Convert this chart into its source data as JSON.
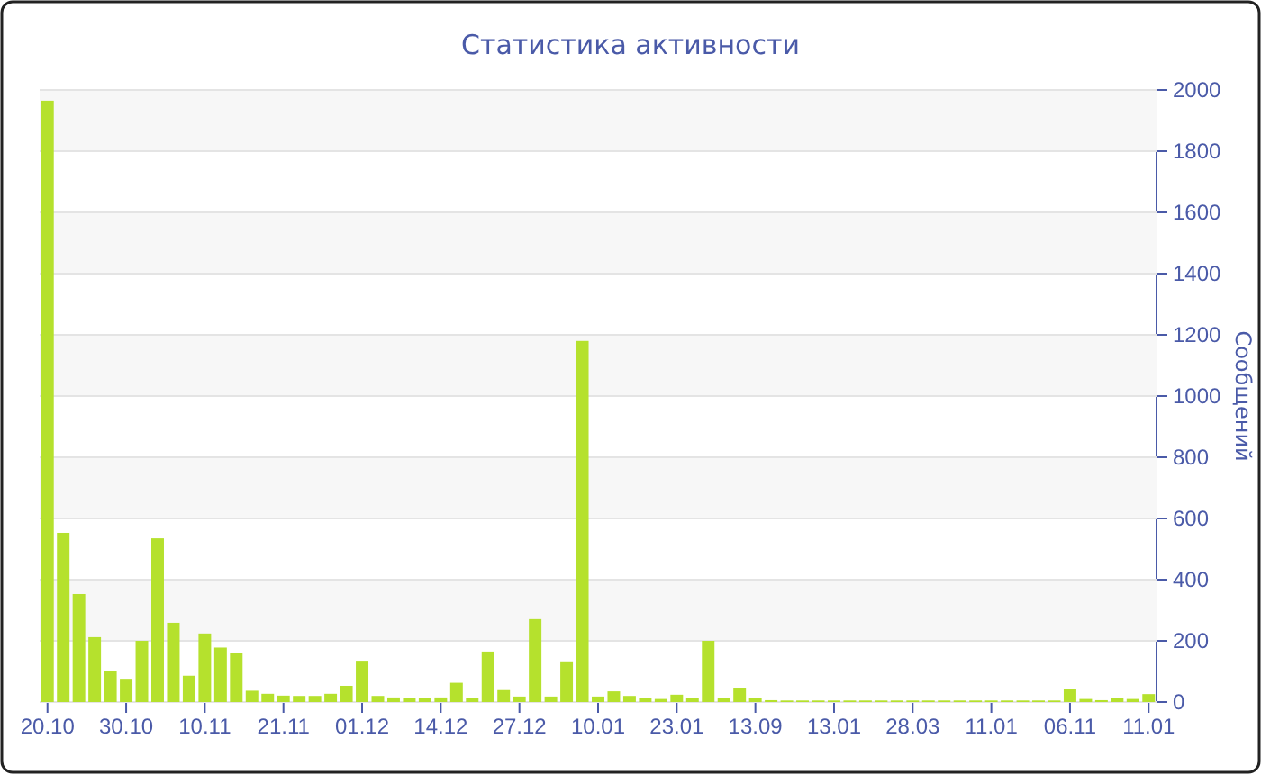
{
  "chart_data": {
    "type": "bar",
    "title": "Статистика активности",
    "ylabel": "Сообщений",
    "categories": [
      "20.10",
      null,
      null,
      null,
      null,
      "30.10",
      null,
      null,
      null,
      null,
      "10.11",
      null,
      null,
      null,
      null,
      "21.11",
      null,
      null,
      null,
      null,
      "01.12",
      null,
      null,
      null,
      null,
      "14.12",
      null,
      null,
      null,
      null,
      "27.12",
      null,
      null,
      null,
      null,
      "10.01",
      null,
      null,
      null,
      null,
      "23.01",
      null,
      null,
      null,
      null,
      "13.09",
      null,
      null,
      null,
      null,
      "13.01",
      null,
      null,
      null,
      null,
      "28.03",
      null,
      null,
      null,
      null,
      "11.01",
      null,
      null,
      null,
      null,
      "06.11",
      null,
      null,
      null,
      null,
      "11.01"
    ],
    "values": [
      1965,
      553,
      353,
      212,
      102,
      76,
      200,
      535,
      259,
      86,
      224,
      178,
      159,
      37,
      27,
      21,
      20,
      20,
      27,
      53,
      135,
      20,
      15,
      14,
      12,
      15,
      63,
      12,
      165,
      39,
      18,
      271,
      18,
      133,
      1180,
      18,
      35,
      20,
      12,
      10,
      24,
      14,
      200,
      12,
      47,
      12,
      6,
      5,
      5,
      5,
      5,
      5,
      5,
      5,
      5,
      5,
      5,
      5,
      5,
      5,
      5,
      5,
      5,
      5,
      5,
      43,
      10,
      6,
      14,
      10,
      26
    ],
    "color": "#b5e12d",
    "ylim": [
      0,
      2000
    ],
    "yticks": [
      0,
      200,
      400,
      600,
      800,
      1000,
      1200,
      1400,
      1600,
      1800,
      2000
    ],
    "grid": "y"
  }
}
